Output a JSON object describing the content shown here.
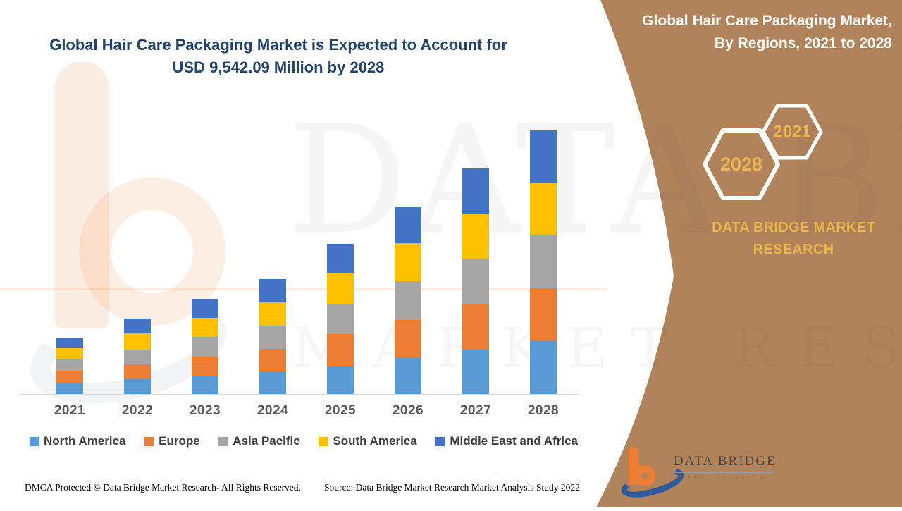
{
  "left": {
    "title": "Global Hair Care Packaging Market is Expected to Account for USD 9,542.09 Million by 2028"
  },
  "chart_data": {
    "type": "bar",
    "stacked": true,
    "title": "Global Hair Care Packaging Market is Expected to Account for USD 9,542.09 Million by 2028",
    "xlabel": "",
    "ylabel": "",
    "unit": "USD Million (values estimated from bar heights; 2028 total stated as 9,542.09)",
    "grid": false,
    "legend_position": "bottom",
    "ylim": [
      0,
      10000
    ],
    "categories": [
      "2021",
      "2022",
      "2023",
      "2024",
      "2025",
      "2026",
      "2027",
      "2028"
    ],
    "series": [
      {
        "name": "North America",
        "color": "#5B9BD5",
        "values": [
          410,
          560,
          690,
          830,
          1050,
          1320,
          1620,
          1930
        ]
      },
      {
        "name": "Europe",
        "color": "#ED7D31",
        "values": [
          460,
          530,
          680,
          830,
          1130,
          1370,
          1640,
          1915
        ]
      },
      {
        "name": "Asia Pacific",
        "color": "#A5A5A5",
        "values": [
          410,
          530,
          730,
          835,
          1090,
          1400,
          1645,
          1910
        ]
      },
      {
        "name": "South America",
        "color": "#FFC000",
        "values": [
          400,
          590,
          680,
          835,
          1100,
          1380,
          1645,
          1910
        ]
      },
      {
        "name": "Middle East and Africa",
        "color": "#4472C4",
        "values": [
          390,
          535,
          680,
          843,
          1080,
          1330,
          1620,
          1877
        ]
      }
    ],
    "totals": [
      2070,
      2745,
      3460,
      4173,
      5450,
      6800,
      8170,
      9542
    ]
  },
  "footer": {
    "dmca": "DMCA Protected © Data Bridge Market Research- All Rights Reserved.",
    "source": "Source: Data Bridge Market Research Market Analysis Study 2022"
  },
  "right_panel": {
    "bg_color": "#B0835A",
    "accent_color": "#EAB54E",
    "title_lines": [
      "Global Hair Care Packaging Market,",
      "By Regions, 2021 to 2028"
    ],
    "badges": [
      {
        "label": "2028"
      },
      {
        "label": "2021"
      }
    ],
    "brand_text": "DATA BRIDGE MARKET RESEARCH",
    "logo": {
      "name": "DATA BRIDGE",
      "sub": "MARKET RESEARCH"
    }
  },
  "watermark": {
    "line1": "DATA BRIDGE",
    "line2": "MARKET RESEARCH"
  }
}
